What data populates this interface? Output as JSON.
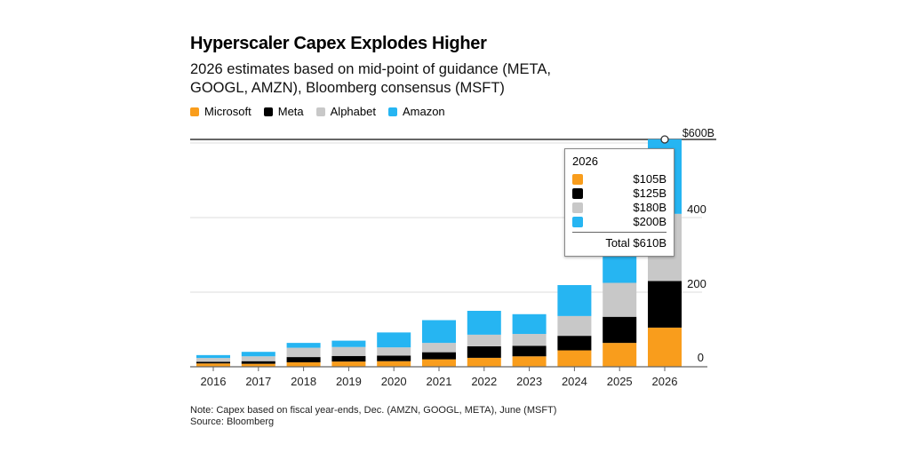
{
  "chart_data": {
    "type": "bar",
    "stacked": true,
    "title": "Hyperscaler Capex Explodes Higher",
    "subtitle": "2026 estimates based on mid-point of guidance (META, GOOGL, AMZN), Bloomberg consensus (MSFT)",
    "xlabel": "",
    "ylabel": "",
    "ylim": [
      0,
      600
    ],
    "yticks": [
      "0",
      "200",
      "400",
      "$600B"
    ],
    "ytick_values": [
      0,
      200,
      400,
      600
    ],
    "grid": true,
    "legend_position": "top-left",
    "categories": [
      "2016",
      "2017",
      "2018",
      "2019",
      "2020",
      "2021",
      "2022",
      "2023",
      "2024",
      "2025",
      "2026"
    ],
    "series": [
      {
        "name": "Microsoft",
        "color": "#f99d1c",
        "values": [
          9,
          8,
          12,
          14,
          15,
          20,
          24,
          28,
          44,
          64,
          105
        ]
      },
      {
        "name": "Meta",
        "color": "#000000",
        "values": [
          4.5,
          7,
          14,
          15,
          15,
          19,
          31,
          28,
          39,
          70,
          125
        ]
      },
      {
        "name": "Alphabet",
        "color": "#c8c8c8",
        "values": [
          10,
          13,
          25,
          24,
          22,
          25,
          31,
          32,
          53,
          91,
          180
        ]
      },
      {
        "name": "Amazon",
        "color": "#26b5f2",
        "values": [
          7.8,
          12,
          13,
          17,
          40,
          61,
          64,
          53,
          83,
          125,
          200
        ]
      }
    ],
    "annotation_marker": {
      "category": "2026",
      "value": 600
    }
  },
  "legend": [
    {
      "label": "Microsoft",
      "color": "#f99d1c"
    },
    {
      "label": "Meta",
      "color": "#000000"
    },
    {
      "label": "Alphabet",
      "color": "#c8c8c8"
    },
    {
      "label": "Amazon",
      "color": "#26b5f2"
    }
  ],
  "tooltip": {
    "year": "2026",
    "rows": [
      {
        "value": "$105B",
        "color": "#f99d1c"
      },
      {
        "value": "$125B",
        "color": "#000000"
      },
      {
        "value": "$180B",
        "color": "#c8c8c8"
      },
      {
        "value": "$200B",
        "color": "#26b5f2"
      }
    ],
    "total": "Total $610B"
  },
  "note": "Note: Capex based on fiscal year-ends, Dec. (AMZN, GOOGL, META), June (MSFT)",
  "source": "Source: Bloomberg"
}
